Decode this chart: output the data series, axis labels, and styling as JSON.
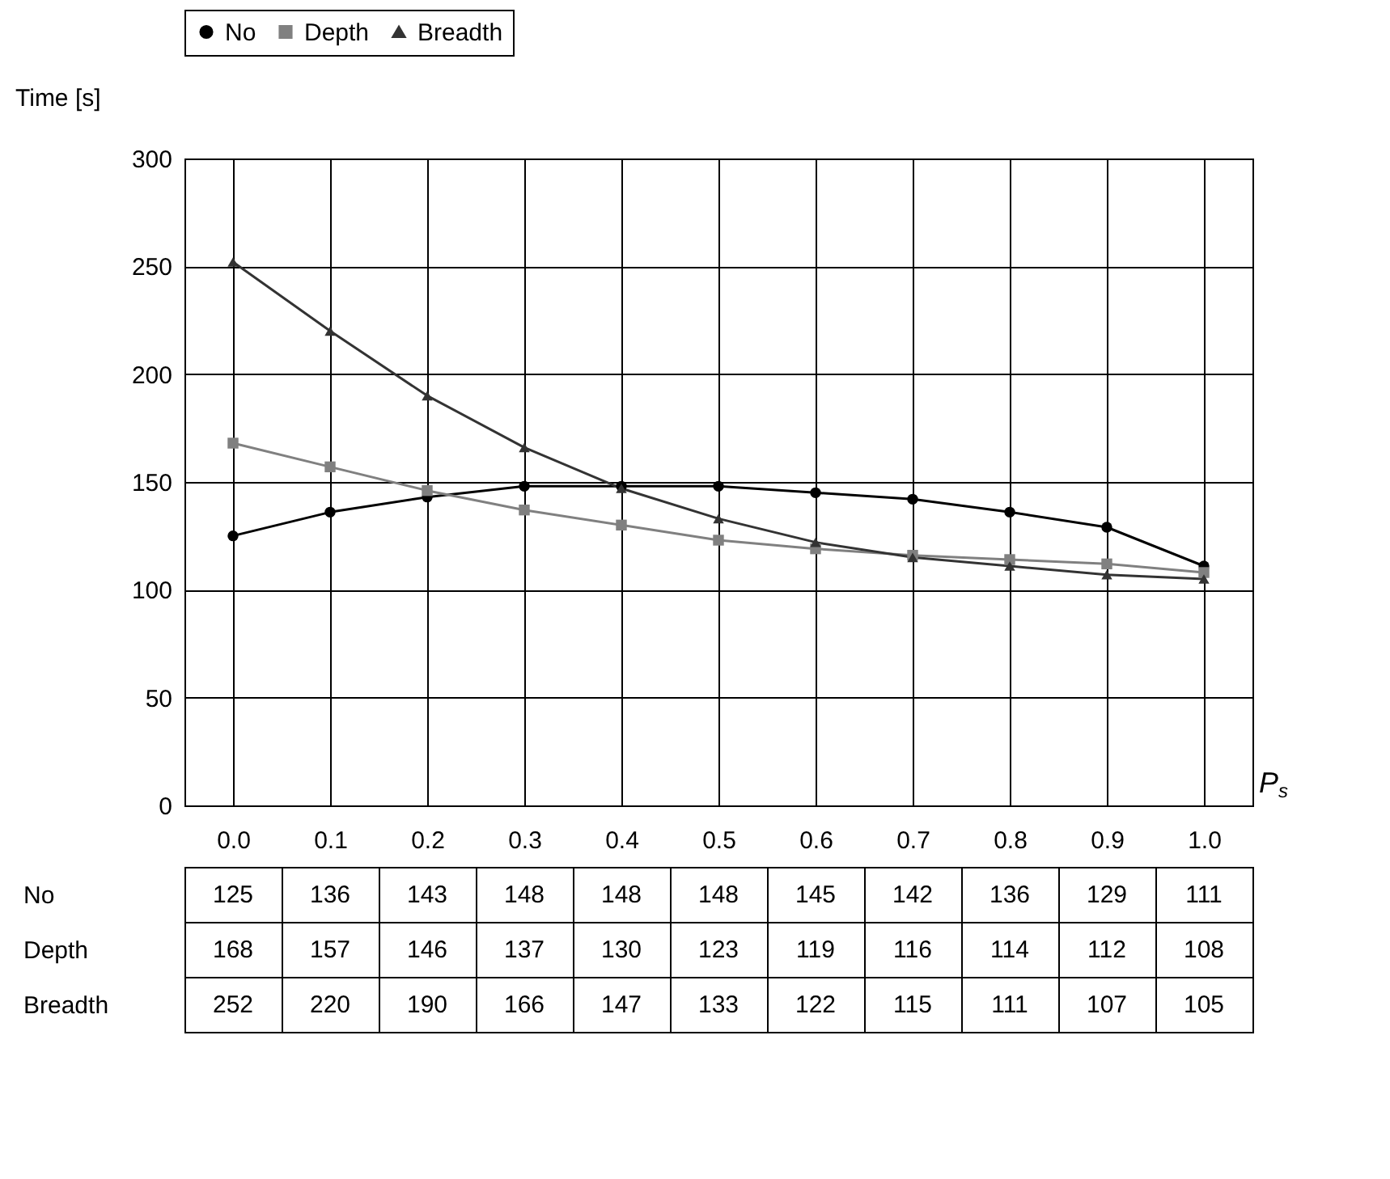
{
  "chart_data": {
    "type": "line",
    "ylabel": "Time [s]",
    "xlabel": "P$_{s}$",
    "categories": [
      "0.0",
      "0.1",
      "0.2",
      "0.3",
      "0.4",
      "0.5",
      "0.6",
      "0.7",
      "0.8",
      "0.9",
      "1.0"
    ],
    "series": [
      {
        "name": "No",
        "color": "#000000",
        "marker": "circle",
        "values": [
          125,
          136,
          143,
          148,
          148,
          148,
          145,
          142,
          136,
          129,
          111
        ]
      },
      {
        "name": "Depth",
        "color": "#808080",
        "marker": "square",
        "values": [
          168,
          157,
          146,
          137,
          130,
          123,
          119,
          116,
          114,
          112,
          108
        ]
      },
      {
        "name": "Breadth",
        "color": "#333333",
        "marker": "triangle",
        "values": [
          252,
          220,
          190,
          166,
          147,
          133,
          122,
          115,
          111,
          107,
          105
        ]
      }
    ],
    "ylim": [
      0,
      300
    ],
    "yticks": [
      0,
      50,
      100,
      150,
      200,
      250,
      300
    ],
    "grid": true,
    "legend": "top",
    "data_labels": true
  }
}
